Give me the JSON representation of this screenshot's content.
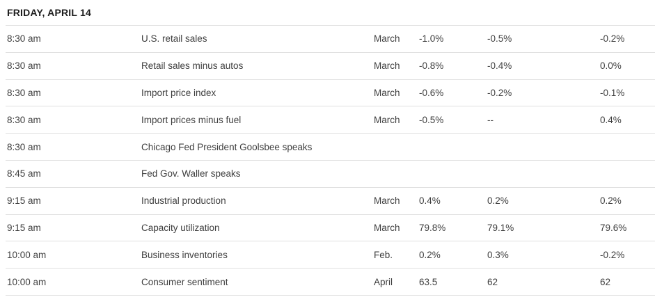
{
  "header": {
    "date_title": "FRIDAY, APRIL 14"
  },
  "colors": {
    "link_underline": "#3d7ea6",
    "divider": "#e0e0e0",
    "body_text": "#3e3e3e",
    "header_text": "#1c1c1c",
    "background": "#ffffff"
  },
  "table": {
    "rows": [
      {
        "time": "8:30 am",
        "report": "U.S. retail sales",
        "is_link": true,
        "period": "March",
        "actual": "-1.0%",
        "forecast": "-0.5%",
        "previous": "-0.2%"
      },
      {
        "time": "8:30 am",
        "report": "Retail sales minus autos",
        "is_link": true,
        "period": "March",
        "actual": "-0.8%",
        "forecast": "-0.4%",
        "previous": "0.0%"
      },
      {
        "time": "8:30 am",
        "report": "Import price index",
        "is_link": true,
        "period": "March",
        "actual": "-0.6%",
        "forecast": "-0.2%",
        "previous": "-0.1%"
      },
      {
        "time": "8:30 am",
        "report": "Import prices minus fuel",
        "is_link": true,
        "period": "March",
        "actual": "-0.5%",
        "forecast": "--",
        "previous": "0.4%"
      },
      {
        "time": "8:30 am",
        "report": "Chicago Fed President Goolsbee speaks",
        "is_link": true,
        "period": "",
        "actual": "",
        "forecast": "",
        "previous": ""
      },
      {
        "time": "8:45 am",
        "report": "Fed Gov. Waller speaks",
        "is_link": true,
        "period": "",
        "actual": "",
        "forecast": "",
        "previous": ""
      },
      {
        "time": "9:15 am",
        "report": "Industrial production",
        "is_link": true,
        "period": "March",
        "actual": "0.4%",
        "forecast": "0.2%",
        "previous": "0.2%"
      },
      {
        "time": "9:15 am",
        "report": "Capacity utilization",
        "is_link": false,
        "period": "March",
        "actual": "79.8%",
        "forecast": "79.1%",
        "previous": "79.6%"
      },
      {
        "time": "10:00 am",
        "report": "Business inventories",
        "is_link": false,
        "period": "Feb.",
        "actual": "0.2%",
        "forecast": "0.3%",
        "previous": "-0.2%"
      },
      {
        "time": "10:00 am",
        "report": "Consumer sentiment",
        "is_link": true,
        "period": "April",
        "actual": "63.5",
        "forecast": "62",
        "previous": "62"
      }
    ]
  }
}
